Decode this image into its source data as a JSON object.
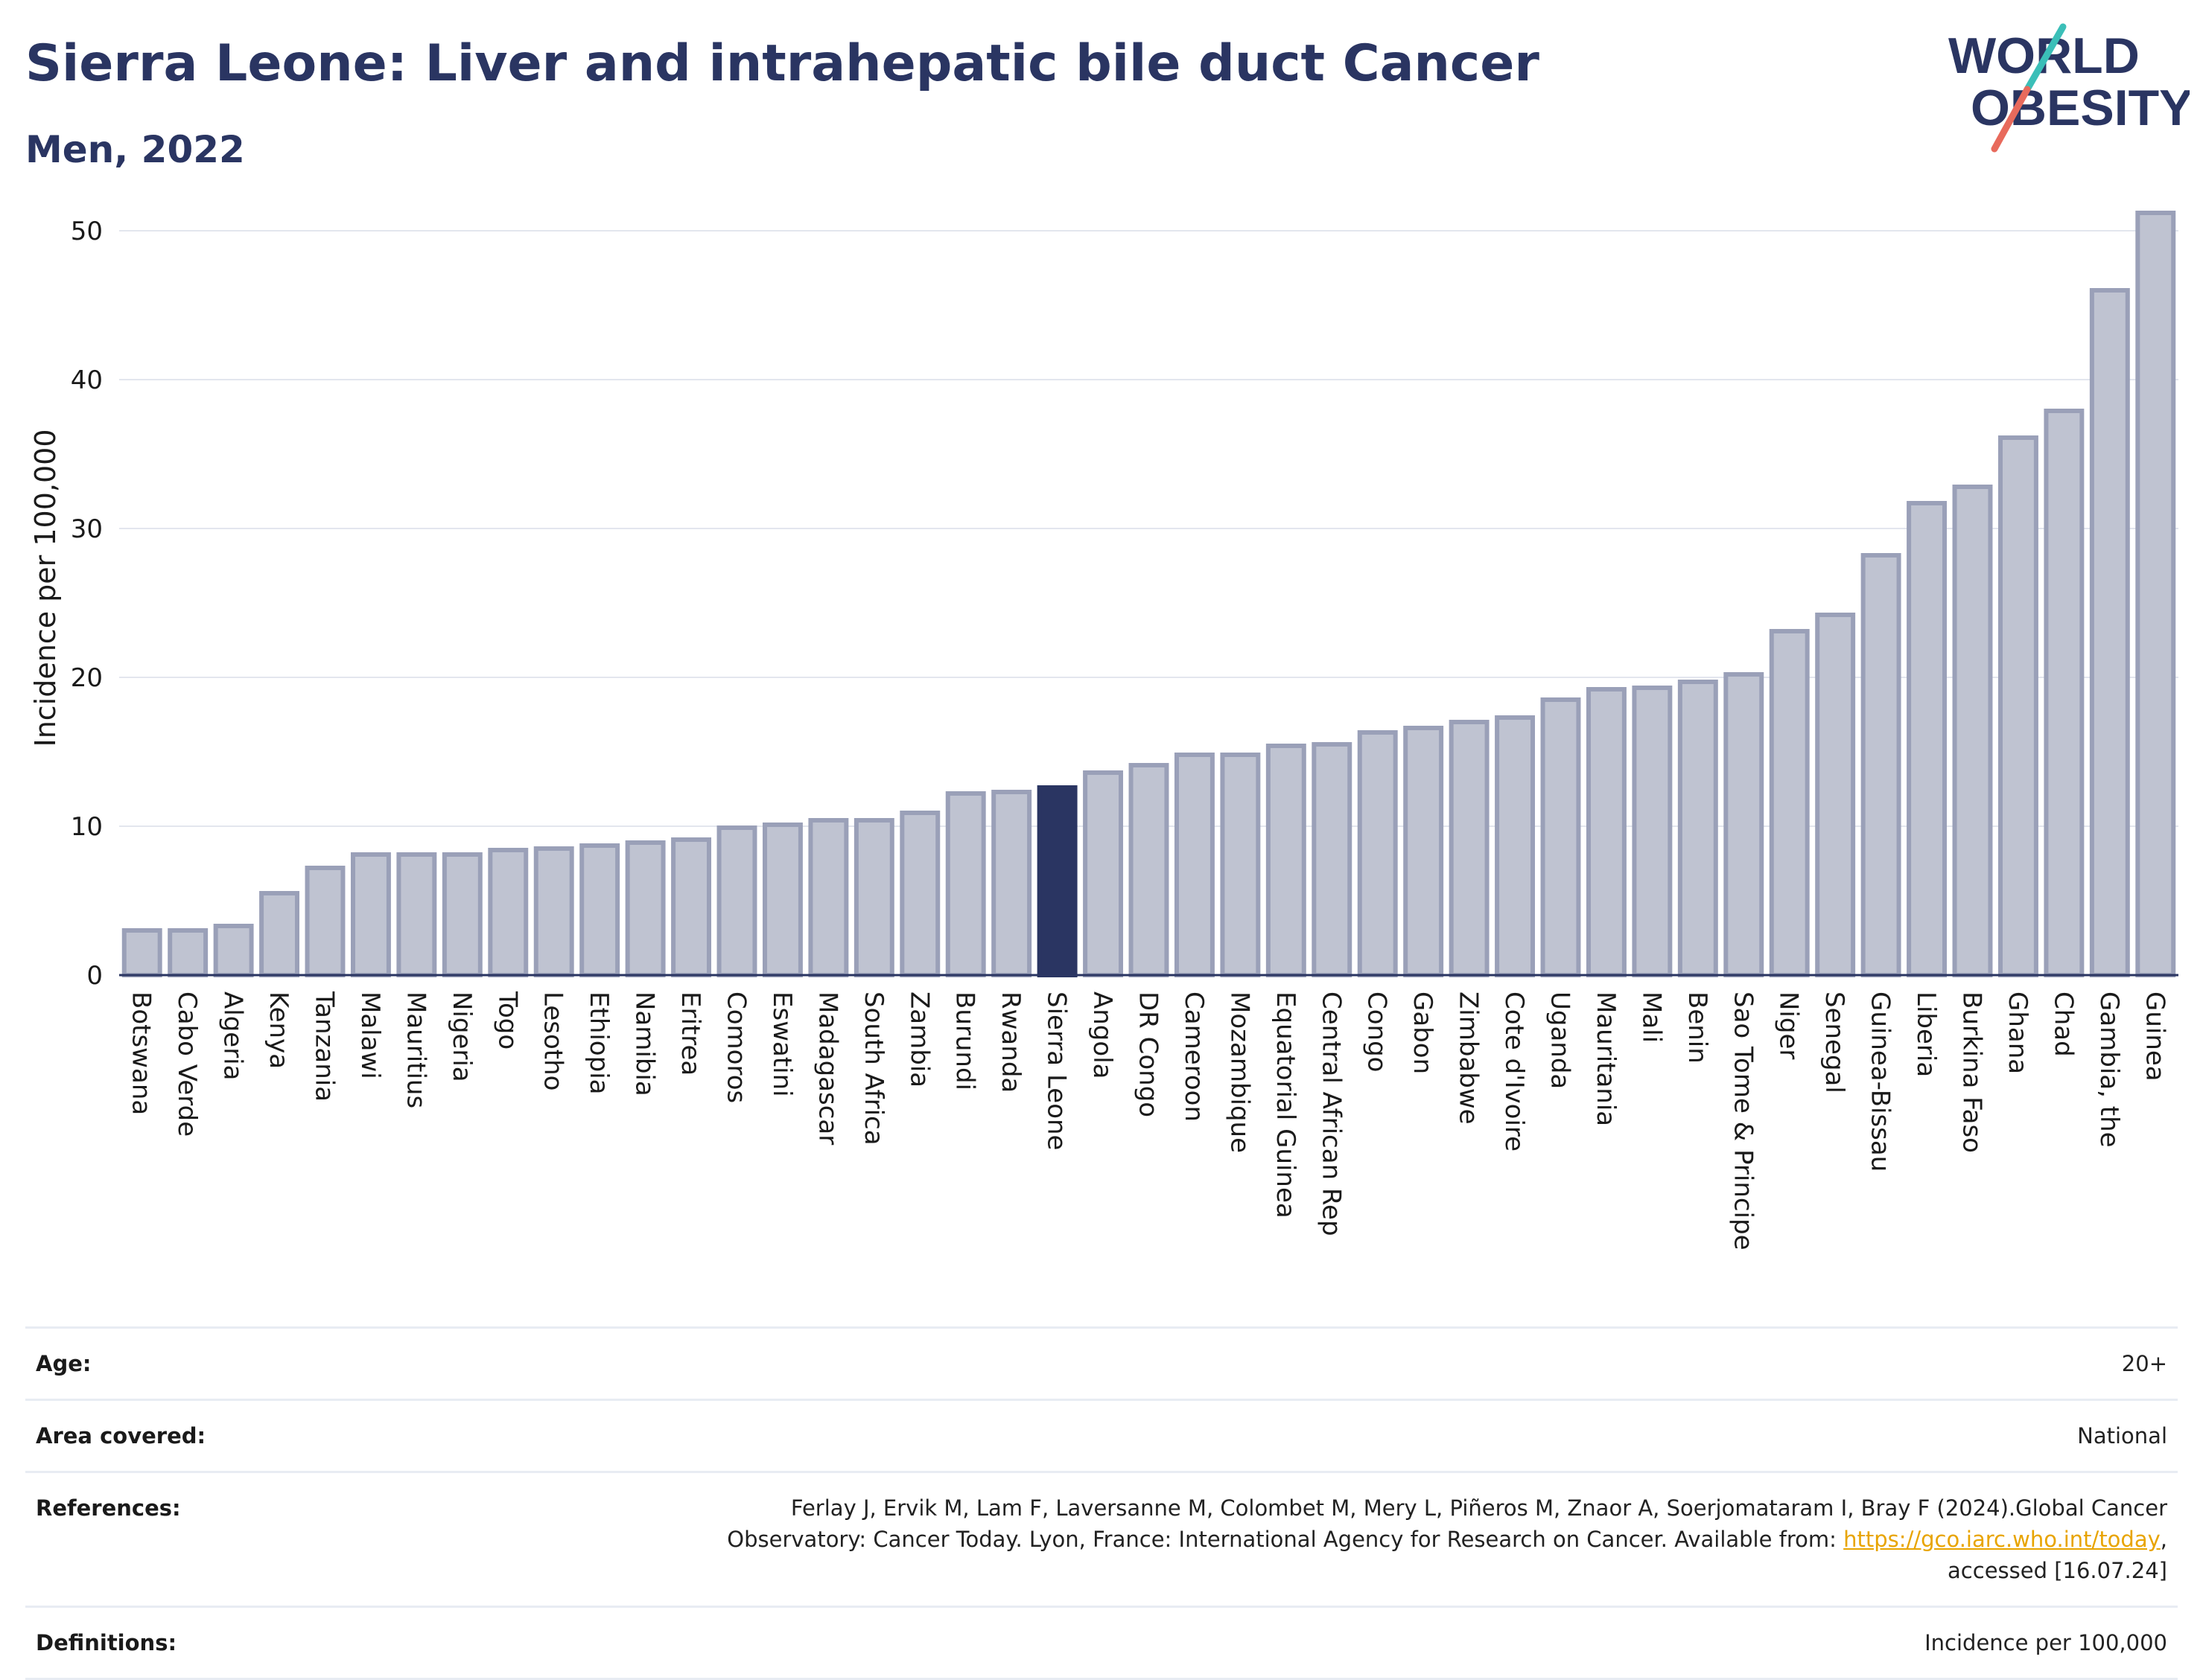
{
  "header": {
    "title": "Sierra Leone: Liver and intrahepatic bile duct Cancer",
    "subtitle": "Men, 2022"
  },
  "logo": {
    "line1": "WORLD",
    "line2": "OBESITY",
    "colors": {
      "text": "#2a3562",
      "slash_top": "#3bbfb8",
      "slash_bottom": "#e86a5c"
    }
  },
  "chart_data": {
    "type": "bar",
    "ylabel": "Incidence per 100,000",
    "xlabel": "",
    "ylim": [
      0,
      52
    ],
    "yticks": [
      0,
      10,
      20,
      30,
      40,
      50
    ],
    "grid": true,
    "highlight": "Sierra Leone",
    "colors": {
      "bar": "#bfc3d1",
      "bar_edge": "#9aa0b8",
      "highlight": "#2a3562",
      "axis": "#2a3562",
      "grid": "#e3e6ee"
    },
    "categories": [
      "Botswana",
      "Cabo Verde",
      "Algeria",
      "Kenya",
      "Tanzania",
      "Malawi",
      "Mauritius",
      "Nigeria",
      "Togo",
      "Lesotho",
      "Ethiopia",
      "Namibia",
      "Eritrea",
      "Comoros",
      "Eswatini",
      "Madagascar",
      "South Africa",
      "Zambia",
      "Burundi",
      "Rwanda",
      "Sierra Leone",
      "Angola",
      "DR Congo",
      "Cameroon",
      "Mozambique",
      "Equatorial Guinea",
      "Central African Rep",
      "Congo",
      "Gabon",
      "Zimbabwe",
      "Cote d'Ivoire",
      "Uganda",
      "Mauritania",
      "Mali",
      "Benin",
      "Sao Tome & Principe",
      "Niger",
      "Senegal",
      "Guinea-Bissau",
      "Liberia",
      "Burkina Faso",
      "Ghana",
      "Chad",
      "Gambia, the",
      "Guinea"
    ],
    "values": [
      3.0,
      3.0,
      3.3,
      5.5,
      7.2,
      8.1,
      8.1,
      8.1,
      8.4,
      8.5,
      8.7,
      8.9,
      9.1,
      9.9,
      10.1,
      10.4,
      10.4,
      10.9,
      12.2,
      12.3,
      12.6,
      13.6,
      14.1,
      14.8,
      14.8,
      15.4,
      15.5,
      16.3,
      16.6,
      17.0,
      17.3,
      18.5,
      19.2,
      19.3,
      19.7,
      20.2,
      23.1,
      24.2,
      28.2,
      31.7,
      32.8,
      36.1,
      37.9,
      46.0,
      51.2
    ]
  },
  "meta": {
    "age": {
      "label": "Age:",
      "value": "20+"
    },
    "area": {
      "label": "Area covered:",
      "value": "National"
    },
    "references": {
      "label": "References:",
      "line1": "Ferlay J, Ervik M, Lam F, Laversanne M, Colombet M, Mery L, Piñeros M, Znaor A, Soerjomataram I, Bray F (2024).Global Cancer",
      "line2_pre": "Observatory: Cancer Today. Lyon, France: International Agency for Research on Cancer. Available from: ",
      "link": "https://gco.iarc.who.int/today",
      "line2_post": ",",
      "line3": "accessed [16.07.24]"
    },
    "definitions": {
      "label": "Definitions:",
      "value": "Incidence per 100,000"
    }
  }
}
